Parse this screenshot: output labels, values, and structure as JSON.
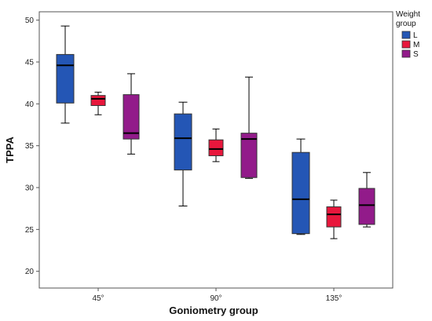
{
  "chart_data": {
    "type": "boxplot",
    "xlabel": "Goniometry group",
    "ylabel": "TPPA",
    "ylim": [
      18,
      51
    ],
    "yticks": [
      20,
      25,
      30,
      35,
      40,
      45,
      50
    ],
    "categories": [
      "45°",
      "90°",
      "135°"
    ],
    "legend": {
      "title_lines": [
        "Weight",
        "group"
      ],
      "placement": "top-right",
      "entries": [
        "L",
        "M",
        "S"
      ]
    },
    "series": [
      {
        "name": "L",
        "color": "#2456b5",
        "boxes": [
          {
            "min": 37.7,
            "q1": 40.1,
            "median": 44.6,
            "q3": 45.9,
            "max": 49.3
          },
          {
            "min": 27.8,
            "q1": 32.1,
            "median": 35.9,
            "q3": 38.8,
            "max": 40.2
          },
          {
            "min": 24.4,
            "q1": 24.5,
            "median": 28.6,
            "q3": 34.2,
            "max": 35.8
          }
        ]
      },
      {
        "name": "M",
        "color": "#e8173c",
        "boxes": [
          {
            "min": 38.7,
            "q1": 39.8,
            "median": 40.6,
            "q3": 41.0,
            "max": 41.4
          },
          {
            "min": 33.1,
            "q1": 33.8,
            "median": 34.6,
            "q3": 35.7,
            "max": 37.0
          },
          {
            "min": 23.9,
            "q1": 25.3,
            "median": 26.8,
            "q3": 27.7,
            "max": 28.5
          }
        ]
      },
      {
        "name": "S",
        "color": "#921b8a",
        "boxes": [
          {
            "min": 34.0,
            "q1": 35.8,
            "median": 36.5,
            "q3": 41.1,
            "max": 43.6
          },
          {
            "min": 31.1,
            "q1": 31.2,
            "median": 35.8,
            "q3": 36.5,
            "max": 43.2
          },
          {
            "min": 25.3,
            "q1": 25.6,
            "median": 27.9,
            "q3": 29.9,
            "max": 31.8
          }
        ]
      }
    ]
  }
}
